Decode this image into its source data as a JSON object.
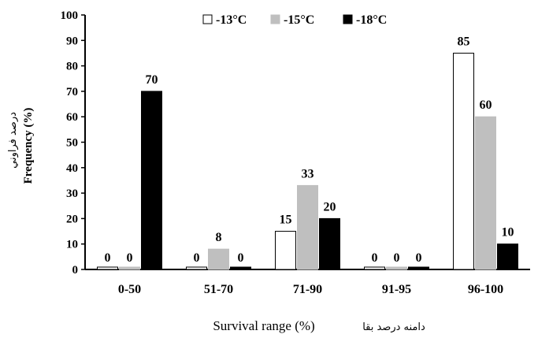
{
  "chart_data": {
    "type": "bar",
    "categories": [
      "0-50",
      "51-70",
      "71-90",
      "91-95",
      "96-100"
    ],
    "series": [
      {
        "name": "-13°C",
        "values": [
          0,
          0,
          15,
          0,
          85
        ],
        "color": "#ffffff",
        "stroke": "#000000"
      },
      {
        "name": "-15°C",
        "values": [
          0,
          8,
          33,
          0,
          60
        ],
        "color": "#bfbfbf",
        "stroke": "#bfbfbf"
      },
      {
        "name": "-18°C",
        "values": [
          70,
          0,
          20,
          0,
          10
        ],
        "color": "#000000",
        "stroke": "#000000"
      }
    ],
    "value_labels": [
      [
        "0",
        "0",
        "70"
      ],
      [
        "0",
        "8",
        "0"
      ],
      [
        "15",
        "33",
        "20"
      ],
      [
        "0",
        "0",
        "0"
      ],
      [
        "85",
        "60",
        "10"
      ]
    ],
    "yticks": [
      "0",
      "10",
      "20",
      "30",
      "40",
      "50",
      "60",
      "70",
      "80",
      "90",
      "100"
    ],
    "ylim": [
      0,
      100
    ],
    "ylabel": "Frequency (%)",
    "ylabel_fa": "درصد فراوني",
    "xlabel": "Survival range (%)",
    "xlabel_fa": "دامنه درصد بقا",
    "legend_position": "top-center",
    "grid": false
  }
}
